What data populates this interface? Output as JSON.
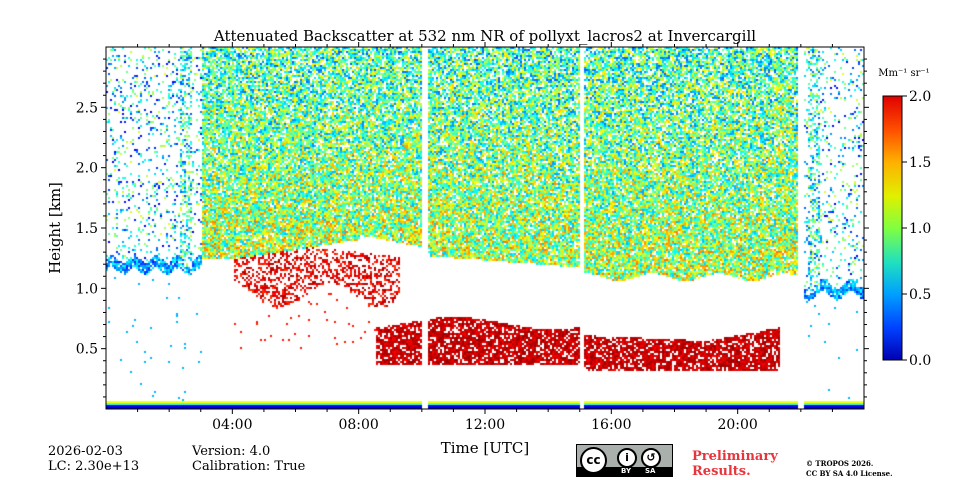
{
  "chart_data": {
    "type": "heatmap",
    "title": "Attenuated Backscatter at 532 nm NR of pollyxt_lacros2 at Invercargill",
    "xlabel": "Time [UTC]",
    "ylabel": "Height [km]",
    "xlim_hours": [
      0,
      24
    ],
    "ylim_km": [
      0,
      3.0
    ],
    "x_ticks": [
      {
        "hour": 4,
        "label": "04:00"
      },
      {
        "hour": 8,
        "label": "08:00"
      },
      {
        "hour": 12,
        "label": "12:00"
      },
      {
        "hour": 16,
        "label": "16:00"
      },
      {
        "hour": 20,
        "label": "20:00"
      }
    ],
    "y_ticks": [
      {
        "value": 0.5,
        "label": "0.5"
      },
      {
        "value": 1.0,
        "label": "1.0"
      },
      {
        "value": 1.5,
        "label": "1.5"
      },
      {
        "value": 2.0,
        "label": "2.0"
      },
      {
        "value": 2.5,
        "label": "2.5"
      }
    ],
    "colorbar": {
      "label": "Mm⁻¹ sr⁻¹",
      "min": 0.0,
      "max": 2.0,
      "ticks": [
        "0.0",
        "0.5",
        "1.0",
        "1.5",
        "2.0"
      ],
      "colormap": "jet"
    },
    "data_gaps_hours": [
      [
        10.0,
        10.15
      ],
      [
        15.0,
        15.1
      ],
      [
        21.9,
        22.05
      ]
    ],
    "features": [
      {
        "name": "noisy boundary layer top",
        "hour_range": [
          0,
          3
        ],
        "height_km": 1.2
      },
      {
        "name": "dense signal region",
        "hour_range": [
          3,
          21.8
        ],
        "height_km_above": 1.4
      },
      {
        "name": "aerosol layer",
        "hour_range": [
          4,
          9
        ],
        "height_km": [
          0.9,
          1.4
        ],
        "value": 1.8
      },
      {
        "name": "lower aerosol layer",
        "hour_range": [
          8.5,
          21.3
        ],
        "height_km": [
          0.3,
          0.7
        ],
        "value": 1.9
      },
      {
        "name": "near-surface overlap band",
        "hour_range": [
          0,
          24
        ],
        "height_km": [
          0.0,
          0.08
        ]
      }
    ]
  },
  "footer": {
    "date": "2026-02-03",
    "lc": "LC: 2.30e+13",
    "version": "Version: 4.0",
    "calibration": "Calibration: True",
    "license_by": "BY",
    "license_sa": "SA",
    "preliminary_1": "Preliminary",
    "preliminary_2": "Results.",
    "copyright_1": "© TROPOS 2026.",
    "copyright_2": "CC BY SA 4.0 License."
  }
}
